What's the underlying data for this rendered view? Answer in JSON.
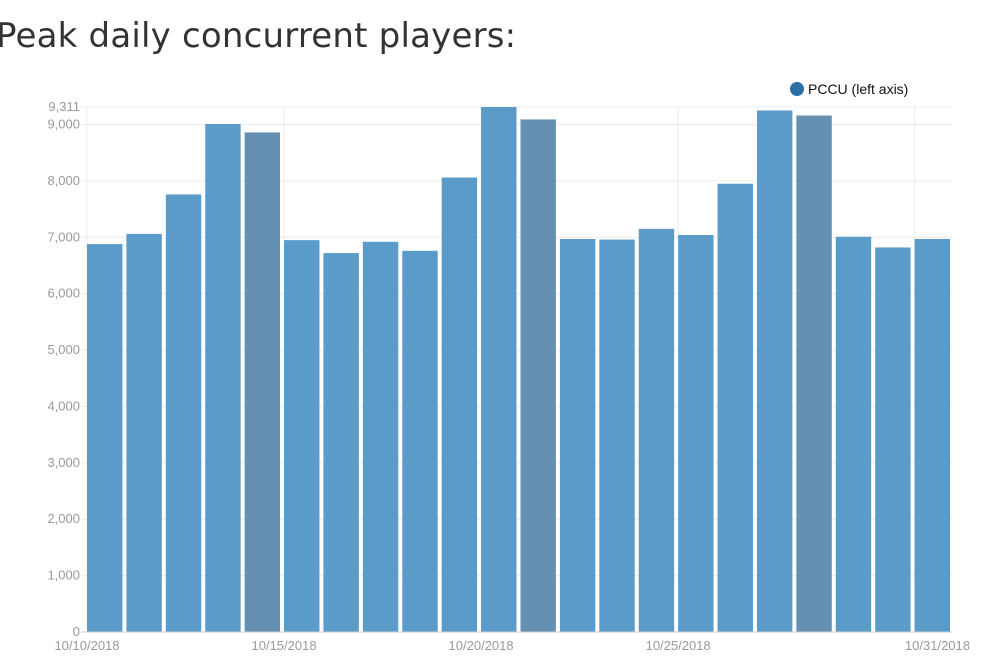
{
  "chart_data": {
    "type": "bar",
    "title": "Peak daily concurrent players:",
    "legend": {
      "label": "PCCU (left axis)",
      "placement": "top-right"
    },
    "ylim": [
      0,
      9311
    ],
    "y_ticks": [
      "0",
      "1,000",
      "2,000",
      "3,000",
      "4,000",
      "5,000",
      "6,000",
      "7,000",
      "8,000",
      "9,000"
    ],
    "y_max_label": "9,311",
    "x_tick_labels": [
      {
        "index": 0,
        "label": "10/10/2018"
      },
      {
        "index": 5,
        "label": "10/15/2018"
      },
      {
        "index": 10,
        "label": "10/20/2018"
      },
      {
        "index": 15,
        "label": "10/25/2018"
      },
      {
        "index": 21,
        "label": "10/31/2018"
      }
    ],
    "categories": [
      "10/10/2018",
      "10/11/2018",
      "10/12/2018",
      "10/13/2018",
      "10/14/2018",
      "10/15/2018",
      "10/16/2018",
      "10/17/2018",
      "10/18/2018",
      "10/19/2018",
      "10/20/2018",
      "10/21/2018",
      "10/22/2018",
      "10/23/2018",
      "10/24/2018",
      "10/25/2018",
      "10/26/2018",
      "10/27/2018",
      "10/28/2018",
      "10/29/2018",
      "10/30/2018",
      "10/31/2018"
    ],
    "values": [
      6880,
      7060,
      7760,
      9010,
      8860,
      6950,
      6720,
      6920,
      6760,
      8060,
      9311,
      9090,
      6970,
      6960,
      7150,
      7040,
      7950,
      9250,
      9160,
      7010,
      6820,
      6970
    ],
    "highlight_indices": [
      4,
      11,
      18
    ],
    "colors": {
      "bar": "#5a9bca",
      "bar_highlight": "#6590b2",
      "grid": "#ececec",
      "legend_dot": "#2f6fa8"
    },
    "grid": true
  }
}
